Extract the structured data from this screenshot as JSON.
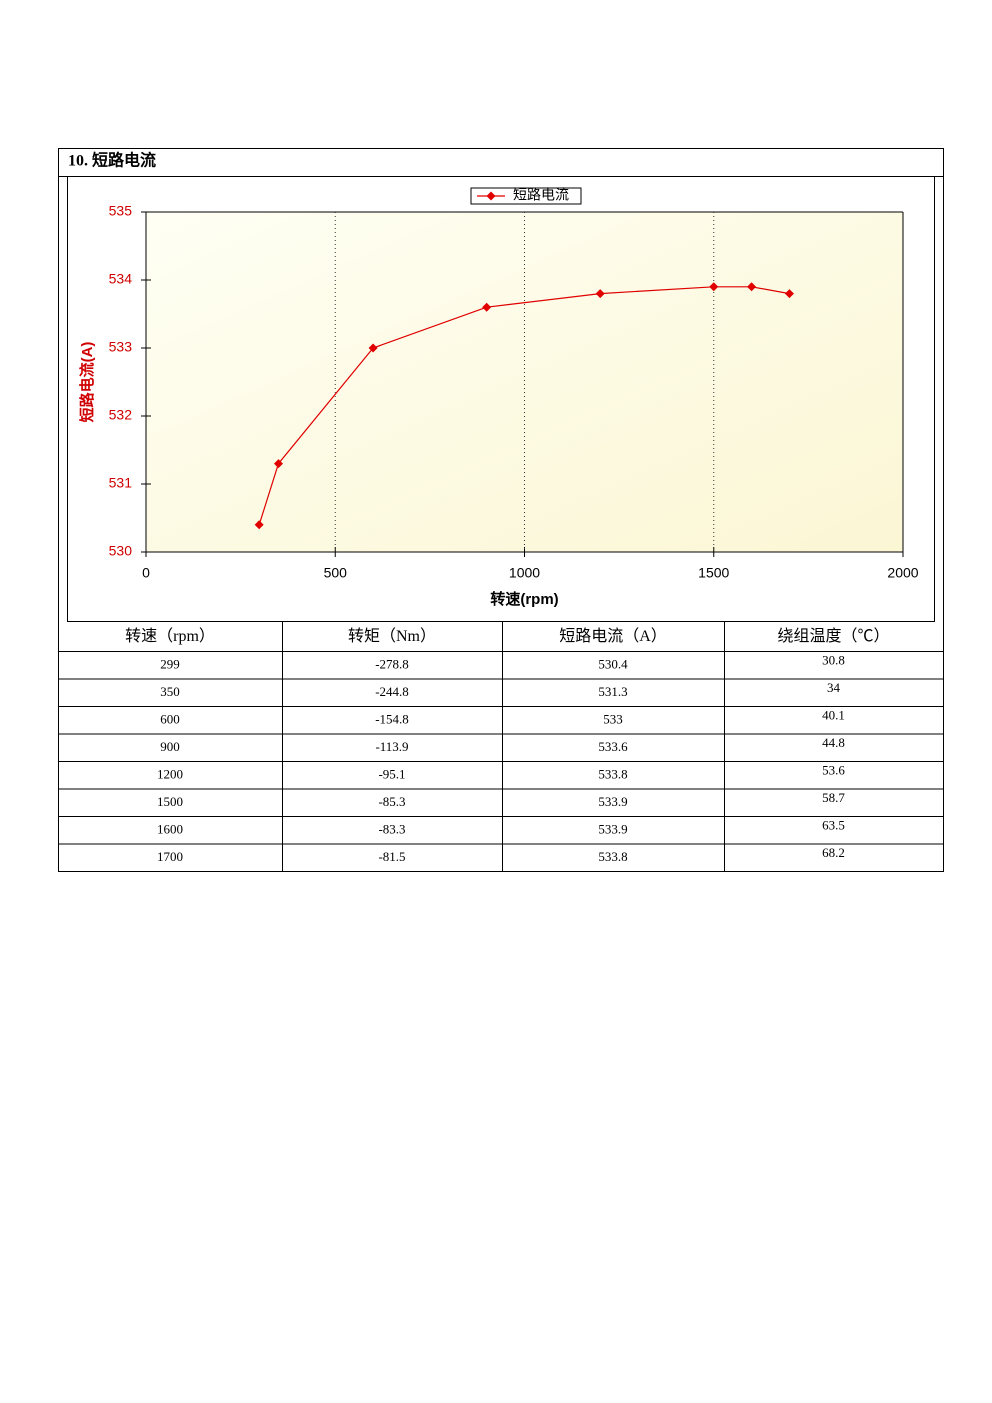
{
  "section_title": "10.  短路电流",
  "chart_data": {
    "type": "line",
    "xlabel": "转速(rpm)",
    "ylabel": "短路电流(A)",
    "x": [
      299,
      350,
      600,
      900,
      1200,
      1500,
      1600,
      1700
    ],
    "series": [
      {
        "name": "短路电流",
        "color": "#e00000",
        "values": [
          530.4,
          531.3,
          533,
          533.6,
          533.8,
          533.9,
          533.9,
          533.8
        ]
      }
    ],
    "xlim": [
      0,
      2000
    ],
    "xticks": [
      0,
      500,
      1000,
      1500,
      2000
    ],
    "ylim": [
      530,
      535
    ],
    "yticks": [
      530,
      531,
      532,
      533,
      534,
      535
    ],
    "grid": true,
    "legend": "top"
  },
  "table": {
    "header": [
      "转速（rpm）",
      "转矩（Nm）",
      "短路电流（A）",
      "绕组温度（℃）"
    ],
    "rows": [
      [
        "299",
        "-278.8",
        "530.4",
        "30.8"
      ],
      [
        "350",
        "-244.8",
        "531.3",
        "34"
      ],
      [
        "600",
        "-154.8",
        "533",
        "40.1"
      ],
      [
        "900",
        "-113.9",
        "533.6",
        "44.8"
      ],
      [
        "1200",
        "-95.1",
        "533.8",
        "53.6"
      ],
      [
        "1500",
        "-85.3",
        "533.9",
        "58.7"
      ],
      [
        "1600",
        "-83.3",
        "533.9",
        "63.5"
      ],
      [
        "1700",
        "-81.5",
        "533.8",
        "68.2"
      ]
    ]
  }
}
